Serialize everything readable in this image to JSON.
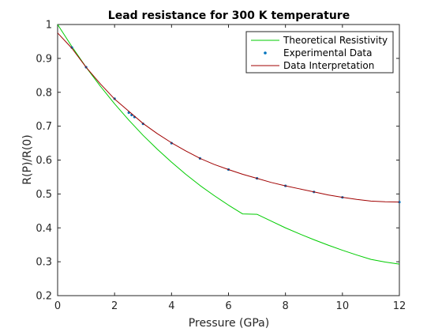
{
  "chart_data": {
    "type": "line",
    "title": "Lead resistance for 300 K temperature",
    "xlabel": "Pressure (GPa)",
    "ylabel": "R(P)/R(0)",
    "xlim": [
      0,
      12
    ],
    "ylim": [
      0.2,
      1
    ],
    "xticks": [
      0,
      2,
      4,
      6,
      8,
      10,
      12
    ],
    "yticks": [
      0.2,
      0.3,
      0.4,
      0.5,
      0.6,
      0.7,
      0.8,
      0.9,
      1
    ],
    "grid": false,
    "legend_position": "top-right",
    "series": [
      {
        "name": "Theoretical Resistivity",
        "style": "line",
        "color": "#00cc00",
        "x": [
          0,
          0.5,
          1,
          1.5,
          2,
          2.5,
          3,
          3.5,
          4,
          4.5,
          5,
          5.5,
          6,
          6.5,
          7,
          7.5,
          8,
          8.5,
          9,
          9.5,
          10,
          10.5,
          11,
          11.5,
          12
        ],
        "y": [
          1.0,
          0.935,
          0.874,
          0.818,
          0.766,
          0.718,
          0.673,
          0.632,
          0.594,
          0.558,
          0.525,
          0.495,
          0.467,
          0.441,
          0.44,
          0.42,
          0.4,
          0.382,
          0.365,
          0.349,
          0.334,
          0.32,
          0.307,
          0.299,
          0.293
        ]
      },
      {
        "name": "Experimental Data",
        "style": "markers",
        "color": "#0072bd",
        "x": [
          0.5,
          1,
          2,
          2.5,
          2.6,
          2.7,
          3,
          4,
          5,
          6,
          7,
          8,
          9,
          10,
          12
        ],
        "y": [
          0.932,
          0.874,
          0.781,
          0.74,
          0.733,
          0.727,
          0.707,
          0.65,
          0.605,
          0.572,
          0.546,
          0.524,
          0.506,
          0.49,
          0.476
        ]
      },
      {
        "name": "Data Interpretation",
        "style": "line",
        "color": "#a00000",
        "x": [
          0,
          0.5,
          1,
          1.5,
          2,
          2.5,
          3,
          3.5,
          4,
          4.5,
          5,
          5.5,
          6,
          6.5,
          7,
          7.5,
          8,
          8.5,
          9,
          9.5,
          10,
          10.5,
          11,
          11.5,
          12
        ],
        "y": [
          0.975,
          0.93,
          0.874,
          0.825,
          0.78,
          0.744,
          0.708,
          0.678,
          0.651,
          0.627,
          0.605,
          0.587,
          0.572,
          0.558,
          0.546,
          0.534,
          0.524,
          0.515,
          0.506,
          0.497,
          0.49,
          0.484,
          0.479,
          0.477,
          0.476
        ]
      }
    ]
  }
}
